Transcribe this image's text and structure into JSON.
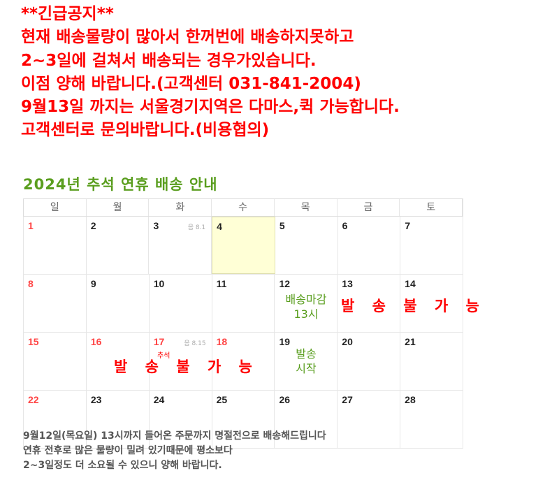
{
  "notice": {
    "lines": [
      "**긴급공지**",
      "현재 배송물량이 많아서 한꺼번에 배송하지못하고",
      "2~3일에 걸쳐서 배송되는 경우가있습니다.",
      "이점 양해 바랍니다.(고객센터 031-841-2004)",
      "",
      "9월13일 까지는 서울경기지역은 다마스,퀵 가능합니다.",
      "고객센터로 문의바랍니다.(비용협의)"
    ]
  },
  "title": "2024년 추석 연휴 배송 안내",
  "calendar": {
    "weekdays": [
      "일",
      "월",
      "화",
      "수",
      "목",
      "금",
      "토"
    ],
    "weeks": [
      [
        "1",
        "2",
        "3",
        "4",
        "5",
        "6",
        "7"
      ],
      [
        "8",
        "9",
        "10",
        "11",
        "12",
        "13",
        "14"
      ],
      [
        "15",
        "16",
        "17",
        "18",
        "19",
        "20",
        "21"
      ],
      [
        "22",
        "23",
        "24",
        "25",
        "26",
        "27",
        "28"
      ]
    ],
    "lunar_3": "음 8.1",
    "lunar_17": "음 8.15",
    "chuseok": "추석",
    "deadline": "배송마감",
    "deadline_time": "13시",
    "no_ship": "발 송 불 가 능",
    "ship_start": "발송",
    "ship_start2": "시작"
  },
  "footer": [
    "9월12일(목요일) 13시까지 들어온 주문까지 명절전으로 배송해드립니다",
    "연휴 전후로 많은 물량이 밀려 있기때문에 평소보다",
    "2~3일정도 더 소요될 수 있으니 양해 바랍니다."
  ],
  "colors": {
    "notice": "#ff0000",
    "title": "#5a9e1f",
    "holiday": "#ff4444",
    "today": "#ffffd6"
  }
}
